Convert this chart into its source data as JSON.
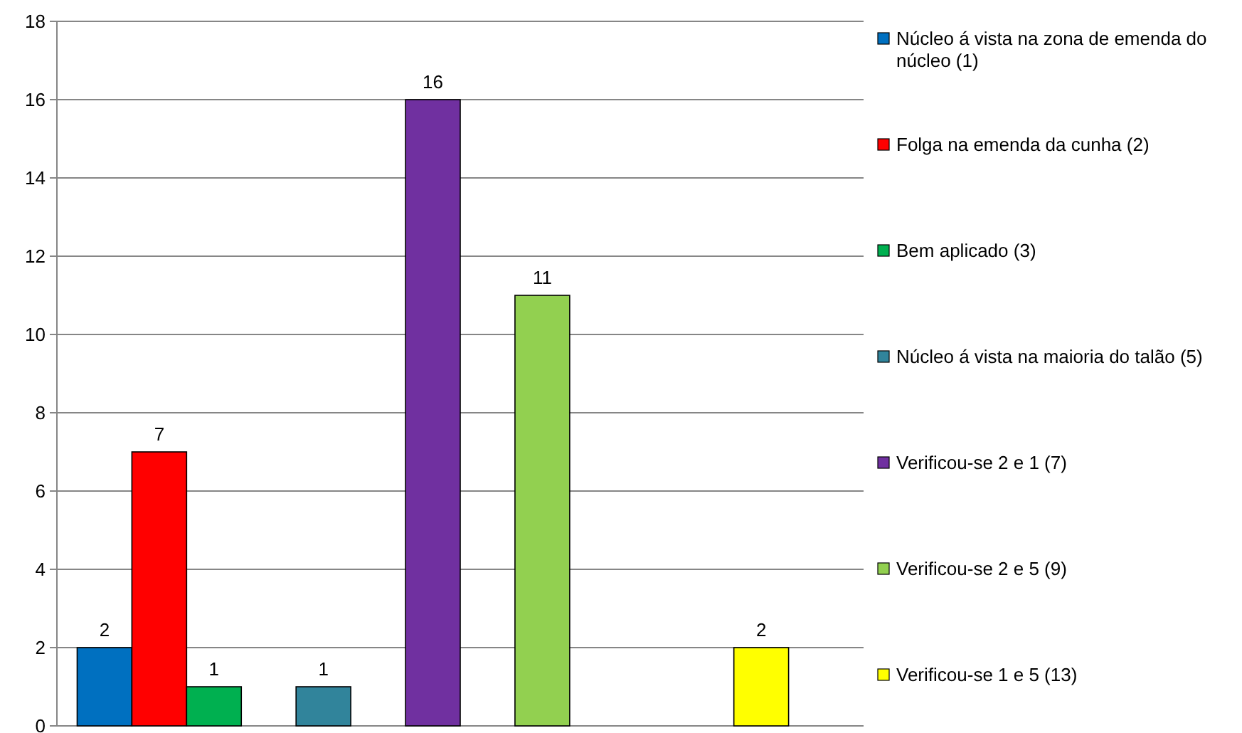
{
  "chart_data": {
    "type": "bar",
    "categories": [
      null,
      null,
      null,
      null,
      null,
      null,
      null,
      null,
      null,
      null,
      null,
      null,
      null,
      null
    ],
    "series": [
      {
        "name": "Núcleo á vista na zona de emenda do núcleo (1)",
        "color": "#0070c0",
        "values": [
          2,
          null,
          null,
          null,
          null,
          null,
          null,
          null,
          null,
          null,
          null,
          null,
          null,
          null
        ]
      },
      {
        "name": "Folga na emenda da cunha (2)",
        "color": "#ff0000",
        "values": [
          null,
          7,
          null,
          null,
          null,
          null,
          null,
          null,
          null,
          null,
          null,
          null,
          null,
          null
        ]
      },
      {
        "name": "Bem aplicado (3)",
        "color": "#00b050",
        "values": [
          null,
          null,
          1,
          null,
          null,
          null,
          null,
          null,
          null,
          null,
          null,
          null,
          null,
          null
        ]
      },
      {
        "name": "Núcleo á vista na maioria do talão (5)",
        "color": "#31849b",
        "values": [
          null,
          null,
          null,
          null,
          1,
          null,
          null,
          null,
          null,
          null,
          null,
          null,
          null,
          null
        ]
      },
      {
        "name": "Verificou-se 2 e 1 (7)",
        "color": "#7030a0",
        "values": [
          null,
          null,
          null,
          null,
          null,
          null,
          16,
          null,
          null,
          null,
          null,
          null,
          null,
          null
        ]
      },
      {
        "name": "Verificou-se 2 e 5 (9)",
        "color": "#92d050",
        "values": [
          null,
          null,
          null,
          null,
          null,
          null,
          null,
          null,
          11,
          null,
          null,
          null,
          null,
          null
        ]
      },
      {
        "name": "Verificou-se 1 e 5 (13)",
        "color": "#ffff00",
        "values": [
          null,
          null,
          null,
          null,
          null,
          null,
          null,
          null,
          null,
          null,
          null,
          null,
          2,
          null
        ]
      }
    ],
    "ylim": [
      0,
      18
    ],
    "yticks": [
      0,
      2,
      4,
      6,
      8,
      10,
      12,
      14,
      16,
      18
    ],
    "grid": "y",
    "legend": "right",
    "tick_labels": "y",
    "data_labels": true
  }
}
